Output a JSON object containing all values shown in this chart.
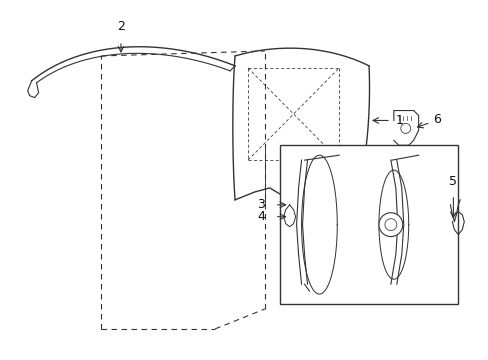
{
  "background_color": "#ffffff",
  "fig_width": 4.89,
  "fig_height": 3.6,
  "dpi": 100,
  "line_color": "#333333",
  "label_color": "#111111"
}
